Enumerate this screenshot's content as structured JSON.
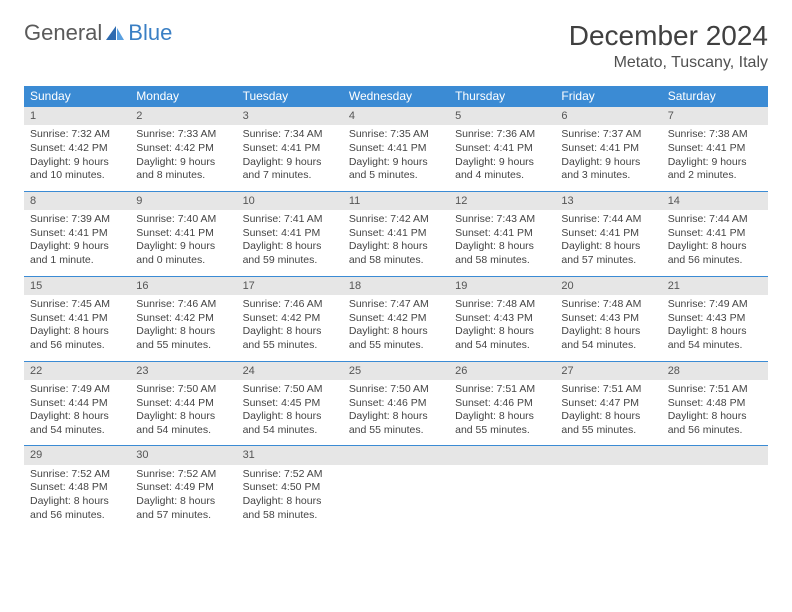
{
  "logo": {
    "general": "General",
    "blue": "Blue"
  },
  "title": "December 2024",
  "location": "Metato, Tuscany, Italy",
  "colors": {
    "header_bg": "#3b8bd4",
    "header_text": "#ffffff",
    "daynum_bg": "#e6e6e6",
    "row_border": "#3b8bd4",
    "logo_blue": "#3a7fc4",
    "logo_gray": "#5a5a5a"
  },
  "weekdays": [
    "Sunday",
    "Monday",
    "Tuesday",
    "Wednesday",
    "Thursday",
    "Friday",
    "Saturday"
  ],
  "days": [
    {
      "n": "1",
      "sr": "Sunrise: 7:32 AM",
      "ss": "Sunset: 4:42 PM",
      "dl": "Daylight: 9 hours and 10 minutes."
    },
    {
      "n": "2",
      "sr": "Sunrise: 7:33 AM",
      "ss": "Sunset: 4:42 PM",
      "dl": "Daylight: 9 hours and 8 minutes."
    },
    {
      "n": "3",
      "sr": "Sunrise: 7:34 AM",
      "ss": "Sunset: 4:41 PM",
      "dl": "Daylight: 9 hours and 7 minutes."
    },
    {
      "n": "4",
      "sr": "Sunrise: 7:35 AM",
      "ss": "Sunset: 4:41 PM",
      "dl": "Daylight: 9 hours and 5 minutes."
    },
    {
      "n": "5",
      "sr": "Sunrise: 7:36 AM",
      "ss": "Sunset: 4:41 PM",
      "dl": "Daylight: 9 hours and 4 minutes."
    },
    {
      "n": "6",
      "sr": "Sunrise: 7:37 AM",
      "ss": "Sunset: 4:41 PM",
      "dl": "Daylight: 9 hours and 3 minutes."
    },
    {
      "n": "7",
      "sr": "Sunrise: 7:38 AM",
      "ss": "Sunset: 4:41 PM",
      "dl": "Daylight: 9 hours and 2 minutes."
    },
    {
      "n": "8",
      "sr": "Sunrise: 7:39 AM",
      "ss": "Sunset: 4:41 PM",
      "dl": "Daylight: 9 hours and 1 minute."
    },
    {
      "n": "9",
      "sr": "Sunrise: 7:40 AM",
      "ss": "Sunset: 4:41 PM",
      "dl": "Daylight: 9 hours and 0 minutes."
    },
    {
      "n": "10",
      "sr": "Sunrise: 7:41 AM",
      "ss": "Sunset: 4:41 PM",
      "dl": "Daylight: 8 hours and 59 minutes."
    },
    {
      "n": "11",
      "sr": "Sunrise: 7:42 AM",
      "ss": "Sunset: 4:41 PM",
      "dl": "Daylight: 8 hours and 58 minutes."
    },
    {
      "n": "12",
      "sr": "Sunrise: 7:43 AM",
      "ss": "Sunset: 4:41 PM",
      "dl": "Daylight: 8 hours and 58 minutes."
    },
    {
      "n": "13",
      "sr": "Sunrise: 7:44 AM",
      "ss": "Sunset: 4:41 PM",
      "dl": "Daylight: 8 hours and 57 minutes."
    },
    {
      "n": "14",
      "sr": "Sunrise: 7:44 AM",
      "ss": "Sunset: 4:41 PM",
      "dl": "Daylight: 8 hours and 56 minutes."
    },
    {
      "n": "15",
      "sr": "Sunrise: 7:45 AM",
      "ss": "Sunset: 4:41 PM",
      "dl": "Daylight: 8 hours and 56 minutes."
    },
    {
      "n": "16",
      "sr": "Sunrise: 7:46 AM",
      "ss": "Sunset: 4:42 PM",
      "dl": "Daylight: 8 hours and 55 minutes."
    },
    {
      "n": "17",
      "sr": "Sunrise: 7:46 AM",
      "ss": "Sunset: 4:42 PM",
      "dl": "Daylight: 8 hours and 55 minutes."
    },
    {
      "n": "18",
      "sr": "Sunrise: 7:47 AM",
      "ss": "Sunset: 4:42 PM",
      "dl": "Daylight: 8 hours and 55 minutes."
    },
    {
      "n": "19",
      "sr": "Sunrise: 7:48 AM",
      "ss": "Sunset: 4:43 PM",
      "dl": "Daylight: 8 hours and 54 minutes."
    },
    {
      "n": "20",
      "sr": "Sunrise: 7:48 AM",
      "ss": "Sunset: 4:43 PM",
      "dl": "Daylight: 8 hours and 54 minutes."
    },
    {
      "n": "21",
      "sr": "Sunrise: 7:49 AM",
      "ss": "Sunset: 4:43 PM",
      "dl": "Daylight: 8 hours and 54 minutes."
    },
    {
      "n": "22",
      "sr": "Sunrise: 7:49 AM",
      "ss": "Sunset: 4:44 PM",
      "dl": "Daylight: 8 hours and 54 minutes."
    },
    {
      "n": "23",
      "sr": "Sunrise: 7:50 AM",
      "ss": "Sunset: 4:44 PM",
      "dl": "Daylight: 8 hours and 54 minutes."
    },
    {
      "n": "24",
      "sr": "Sunrise: 7:50 AM",
      "ss": "Sunset: 4:45 PM",
      "dl": "Daylight: 8 hours and 54 minutes."
    },
    {
      "n": "25",
      "sr": "Sunrise: 7:50 AM",
      "ss": "Sunset: 4:46 PM",
      "dl": "Daylight: 8 hours and 55 minutes."
    },
    {
      "n": "26",
      "sr": "Sunrise: 7:51 AM",
      "ss": "Sunset: 4:46 PM",
      "dl": "Daylight: 8 hours and 55 minutes."
    },
    {
      "n": "27",
      "sr": "Sunrise: 7:51 AM",
      "ss": "Sunset: 4:47 PM",
      "dl": "Daylight: 8 hours and 55 minutes."
    },
    {
      "n": "28",
      "sr": "Sunrise: 7:51 AM",
      "ss": "Sunset: 4:48 PM",
      "dl": "Daylight: 8 hours and 56 minutes."
    },
    {
      "n": "29",
      "sr": "Sunrise: 7:52 AM",
      "ss": "Sunset: 4:48 PM",
      "dl": "Daylight: 8 hours and 56 minutes."
    },
    {
      "n": "30",
      "sr": "Sunrise: 7:52 AM",
      "ss": "Sunset: 4:49 PM",
      "dl": "Daylight: 8 hours and 57 minutes."
    },
    {
      "n": "31",
      "sr": "Sunrise: 7:52 AM",
      "ss": "Sunset: 4:50 PM",
      "dl": "Daylight: 8 hours and 58 minutes."
    }
  ]
}
